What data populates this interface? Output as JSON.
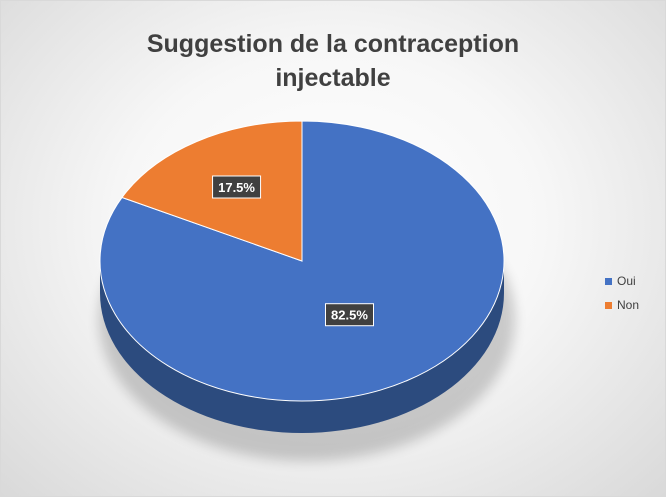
{
  "chart_data": {
    "type": "pie",
    "title": [
      "Suggestion de la contraception",
      "injectable"
    ],
    "categories": [
      "Oui",
      "Non"
    ],
    "values": [
      82.5,
      17.5
    ],
    "labels": [
      "82.5%",
      "17.5%"
    ],
    "colors": [
      "#4472C4",
      "#ED7D31"
    ],
    "side_colors": [
      "#2C4B7E",
      "#A3531E"
    ],
    "legend_position": "right",
    "style": "3d-pie"
  }
}
